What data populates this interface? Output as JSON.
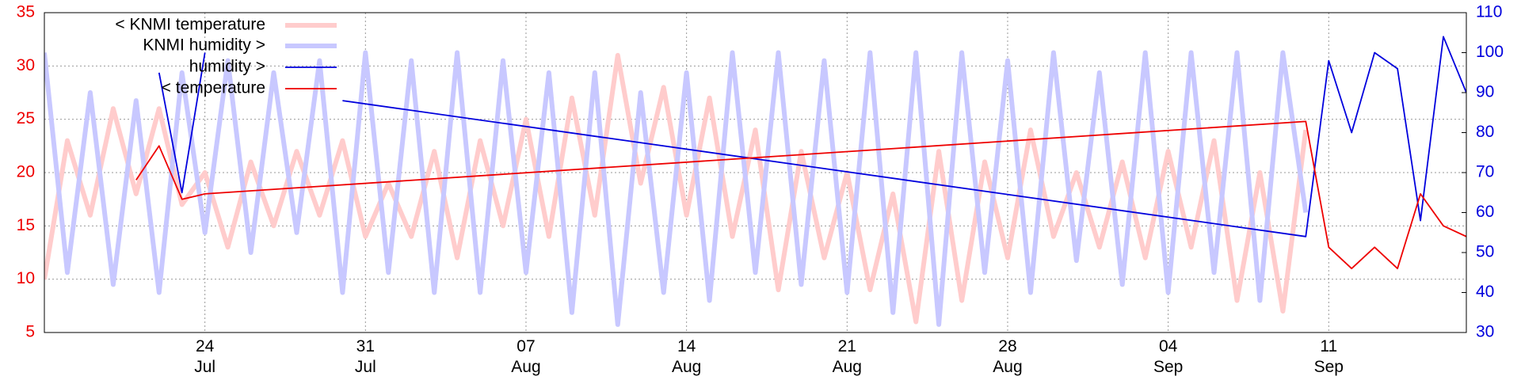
{
  "chart_data": {
    "type": "line",
    "x": [
      "Jul 17",
      "Jul 18",
      "Jul 19",
      "Jul 20",
      "Jul 21",
      "Jul 22",
      "Jul 23",
      "Jul 24",
      "Jul 25",
      "Jul 26",
      "Jul 27",
      "Jul 28",
      "Jul 29",
      "Jul 30",
      "Jul 31",
      "Aug 1",
      "Aug 2",
      "Aug 3",
      "Aug 4",
      "Aug 5",
      "Aug 6",
      "Aug 7",
      "Aug 8",
      "Aug 9",
      "Aug 10",
      "Aug 11",
      "Aug 12",
      "Aug 13",
      "Aug 14",
      "Aug 15",
      "Aug 16",
      "Aug 17",
      "Aug 18",
      "Aug 19",
      "Aug 20",
      "Aug 21",
      "Aug 22",
      "Aug 23",
      "Aug 24",
      "Aug 25",
      "Aug 26",
      "Aug 27",
      "Aug 28",
      "Aug 29",
      "Aug 30",
      "Aug 31",
      "Sep 1",
      "Sep 2",
      "Sep 3",
      "Sep 4",
      "Sep 5",
      "Sep 6",
      "Sep 7",
      "Sep 8",
      "Sep 9",
      "Sep 10",
      "Sep 11",
      "Sep 12",
      "Sep 13",
      "Sep 14",
      "Sep 15",
      "Sep 16",
      "Sep 17"
    ],
    "series": [
      {
        "name": "< KNMI temperature",
        "color": "#ffcccc",
        "width": 6,
        "values": [
          10,
          23,
          16,
          26,
          18,
          26,
          17,
          20,
          13,
          21,
          15,
          22,
          16,
          23,
          14,
          19,
          14,
          22,
          12,
          23,
          15,
          25,
          14,
          27,
          16,
          31,
          19,
          28,
          16,
          27,
          14,
          24,
          9,
          22,
          12,
          20,
          9,
          18,
          6,
          22,
          8,
          21,
          12,
          24,
          14,
          20,
          13,
          21,
          12,
          22,
          13,
          23,
          8,
          20,
          7,
          24,
          null,
          null,
          null,
          null,
          null,
          null,
          null
        ]
      },
      {
        "name": "KNMI humidity >",
        "color": "#c8c8ff",
        "width": 6,
        "axis": "y2",
        "values": [
          100,
          45,
          90,
          42,
          88,
          40,
          95,
          55,
          98,
          50,
          95,
          55,
          98,
          40,
          100,
          45,
          98,
          40,
          100,
          40,
          98,
          45,
          95,
          35,
          95,
          32,
          90,
          40,
          95,
          38,
          100,
          45,
          100,
          42,
          98,
          40,
          100,
          35,
          100,
          32,
          100,
          45,
          98,
          40,
          100,
          48,
          95,
          42,
          100,
          40,
          100,
          45,
          100,
          38,
          100,
          60,
          null,
          null,
          null,
          null,
          null,
          null,
          null
        ]
      },
      {
        "name": "humidity >",
        "color": "#0000dd",
        "width": 1.8,
        "axis": "y2",
        "x": [
          "Jul 22",
          "Jul 23",
          "Jul 24",
          "Jul 27",
          "Jul 30",
          "Sep 10",
          "Sep 11",
          "Sep 12",
          "Sep 13",
          "Sep 14",
          "Sep 15",
          "Sep 16",
          "Sep 17"
        ],
        "values": [
          95,
          65,
          100,
          null,
          88,
          54,
          98,
          80,
          100,
          96,
          58,
          104,
          90
        ]
      },
      {
        "name": "< temperature",
        "color": "#ee0000",
        "width": 1.8,
        "x": [
          "Jul 21",
          "Jul 22",
          "Jul 23",
          "Jul 24",
          "Sep 10",
          "Sep 11",
          "Sep 12",
          "Sep 13",
          "Sep 14",
          "Sep 15",
          "Sep 16",
          "Sep 17"
        ],
        "values": [
          19.3,
          22.5,
          17.5,
          18,
          24.8,
          13,
          11,
          13,
          11,
          18,
          15,
          14
        ]
      }
    ],
    "xlim": [
      "Jul 17",
      "Sep 17"
    ],
    "xticks": [
      {
        "value": "Jul 24",
        "label": "24 Jul"
      },
      {
        "value": "Jul 31",
        "label": "31 Jul"
      },
      {
        "value": "Aug 7",
        "label": "07 Aug"
      },
      {
        "value": "Aug 14",
        "label": "14 Aug"
      },
      {
        "value": "Aug 21",
        "label": "21 Aug"
      },
      {
        "value": "Aug 28",
        "label": "28 Aug"
      },
      {
        "value": "Sep 4",
        "label": "04 Sep"
      },
      {
        "value": "Sep 11",
        "label": "11 Sep"
      }
    ],
    "ylim": [
      5,
      35
    ],
    "yticks": [
      5,
      10,
      15,
      20,
      25,
      30,
      35
    ],
    "ycolor": "#ee0000",
    "y2lim": [
      30,
      110
    ],
    "y2ticks": [
      30,
      40,
      50,
      60,
      70,
      80,
      90,
      100,
      110
    ],
    "y2color": "#0000dd",
    "grid": true,
    "legend": "top-left"
  }
}
